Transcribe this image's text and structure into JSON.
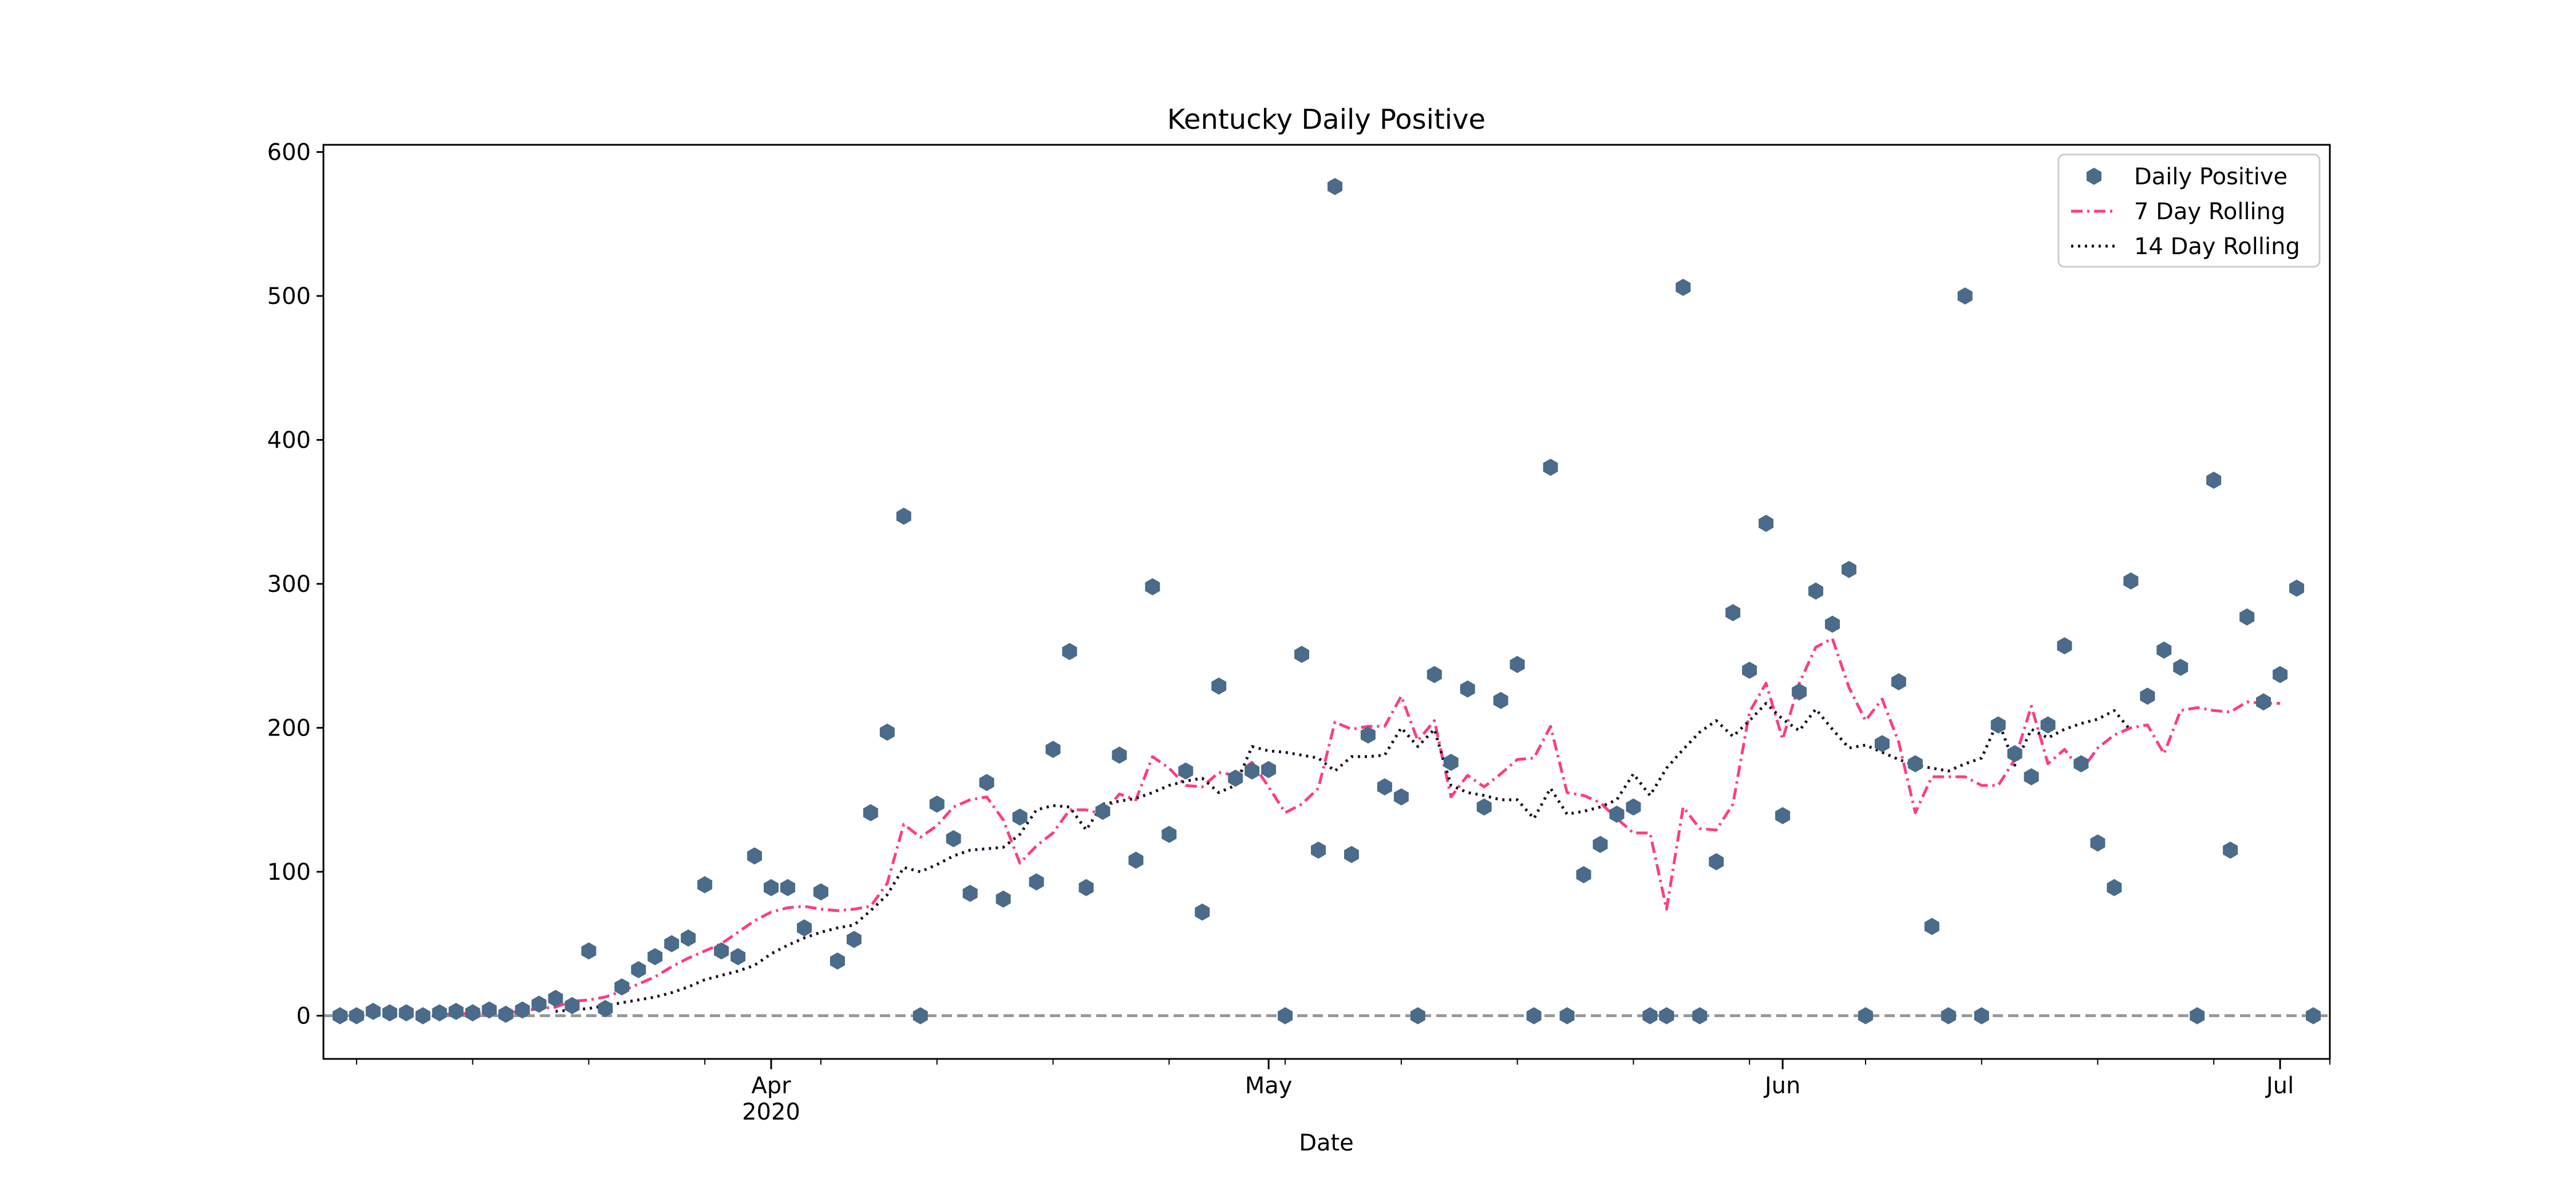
{
  "chart_data": {
    "type": "scatter",
    "title": "Kentucky Daily Positive",
    "xlabel": "Date",
    "ylabel": "",
    "ylim": [
      -30,
      605
    ],
    "xlim": [
      "2020-03-05",
      "2020-07-04"
    ],
    "grid": false,
    "legend_position": "top-right",
    "x_ticks": [
      {
        "date": "2020-04-01",
        "label": "Apr",
        "sublabel": "2020"
      },
      {
        "date": "2020-05-01",
        "label": "May",
        "sublabel": ""
      },
      {
        "date": "2020-06-01",
        "label": "Jun",
        "sublabel": ""
      },
      {
        "date": "2020-07-01",
        "label": "Jul",
        "sublabel": ""
      }
    ],
    "y_ticks": [
      0,
      100,
      200,
      300,
      400,
      500,
      600
    ],
    "start_date": "2020-03-06",
    "series": [
      {
        "name": "Daily Positive",
        "kind": "scatter",
        "color": "#4a6b8a",
        "values": [
          0,
          0,
          3,
          2,
          2,
          0,
          2,
          3,
          2,
          4,
          1,
          4,
          8,
          12,
          7,
          45,
          5,
          20,
          32,
          41,
          50,
          54,
          91,
          45,
          41,
          111,
          89,
          89,
          61,
          86,
          38,
          53,
          141,
          197,
          347,
          0,
          147,
          123,
          85,
          162,
          81,
          138,
          93,
          185,
          253,
          89,
          142,
          181,
          108,
          298,
          126,
          170,
          72,
          229,
          165,
          170,
          171,
          0,
          251,
          115,
          576,
          112,
          195,
          159,
          152,
          0,
          237,
          176,
          227,
          145,
          219,
          244,
          0,
          381,
          0,
          98,
          119,
          140,
          145,
          0,
          0,
          506,
          0,
          107,
          280,
          240,
          342,
          139,
          225,
          295,
          272,
          310,
          0,
          189,
          232,
          175,
          62,
          0,
          500,
          0,
          202,
          182,
          166,
          202,
          257,
          175,
          120,
          89,
          302,
          222,
          254,
          242,
          0,
          372,
          115,
          277,
          218,
          237,
          297,
          0
        ]
      },
      {
        "name": "7 Day Rolling",
        "kind": "line",
        "color": "#ff3d7f",
        "style": "dashdot",
        "start_index": 6,
        "values": [
          1,
          1,
          2,
          2,
          2,
          3,
          5,
          6,
          10,
          11,
          13,
          17,
          22,
          27,
          34,
          40,
          45,
          50,
          58,
          66,
          72,
          75,
          76,
          74,
          73,
          74,
          76,
          92,
          133,
          124,
          132,
          145,
          150,
          152,
          136,
          106,
          118,
          127,
          143,
          143,
          140,
          154,
          150,
          180,
          172,
          160,
          159,
          169,
          167,
          176,
          159,
          141,
          147,
          158,
          204,
          199,
          201,
          201,
          222,
          191,
          205,
          152,
          167,
          159,
          168,
          178,
          179,
          201,
          155,
          153,
          148,
          137,
          127,
          127,
          74,
          145,
          130,
          129,
          147,
          211,
          231,
          192,
          231,
          256,
          262,
          228,
          205,
          220,
          190,
          141,
          166,
          166,
          166,
          160,
          160,
          178,
          215,
          175,
          185,
          170,
          186,
          195,
          200,
          202,
          182,
          212,
          214,
          212,
          211,
          218,
          217,
          217
        ]
      },
      {
        "name": "14 Day Rolling",
        "kind": "line",
        "color": "#1a0a22",
        "style": "dotted",
        "start_index": 13,
        "values": [
          3,
          4,
          5,
          7,
          9,
          11,
          13,
          16,
          20,
          25,
          28,
          31,
          35,
          43,
          49,
          54,
          58,
          61,
          63,
          73,
          84,
          103,
          100,
          105,
          111,
          115,
          116,
          117,
          126,
          143,
          146,
          145,
          129,
          147,
          149,
          151,
          155,
          160,
          163,
          165,
          155,
          160,
          187,
          184,
          183,
          181,
          179,
          170,
          180,
          180,
          181,
          200,
          187,
          199,
          160,
          155,
          153,
          150,
          150,
          137,
          158,
          140,
          142,
          145,
          150,
          168,
          153,
          172,
          185,
          197,
          205,
          194,
          205,
          217,
          206,
          198,
          213,
          199,
          186,
          188,
          183,
          178,
          174,
          172,
          170,
          175,
          179,
          205,
          174,
          199,
          193,
          199,
          203,
          206,
          212,
          198
        ]
      }
    ],
    "reference_line": {
      "y": 0,
      "color": "#999999",
      "style": "dashed"
    }
  }
}
